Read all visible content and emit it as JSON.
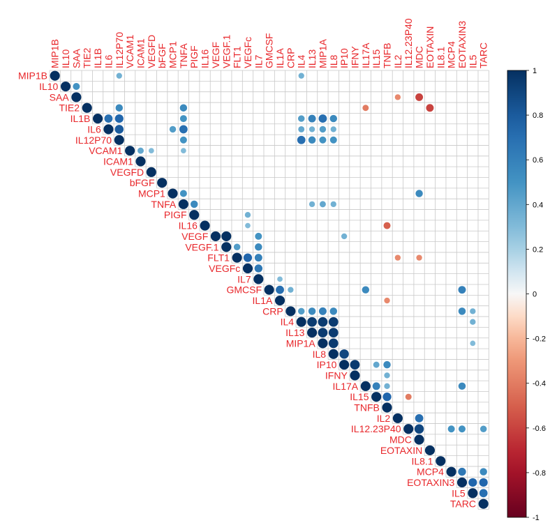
{
  "chart_data": {
    "type": "heatmap",
    "layout": "upper-triangle",
    "method": "circle",
    "variables": [
      "MIP1B",
      "IL10",
      "SAA",
      "TIE2",
      "IL1B",
      "IL6",
      "IL12P70",
      "VCAM1",
      "ICAM1",
      "VEGFD",
      "bFGF",
      "MCP1",
      "TNFA",
      "PIGF",
      "IL16",
      "VEGF",
      "VEGF.1",
      "FLT1",
      "VEGFc",
      "IL7",
      "GMCSF",
      "IL1A",
      "CRP",
      "IL4",
      "IL13",
      "MIP1A",
      "IL8",
      "IP10",
      "IFNY",
      "IL17A",
      "IL15",
      "TNFB",
      "IL2",
      "IL12.23P40",
      "MDC",
      "EOTAXIN",
      "IL8.1",
      "MCP4",
      "EOTAXIN3",
      "IL5",
      "TARC"
    ],
    "cells": [
      [
        "MIP1B",
        "IL12P70",
        0.35
      ],
      [
        "MIP1B",
        "IL4",
        0.35
      ],
      [
        "IL10",
        "SAA",
        0.5
      ],
      [
        "SAA",
        "IL2",
        -0.35
      ],
      [
        "SAA",
        "MDC",
        -0.6
      ],
      [
        "TIE2",
        "IL12P70",
        0.55
      ],
      [
        "TIE2",
        "TNFA",
        0.55
      ],
      [
        "TIE2",
        "IL17A",
        -0.4
      ],
      [
        "TIE2",
        "EOTAXIN",
        -0.6
      ],
      [
        "IL1B",
        "IL6",
        0.7
      ],
      [
        "IL1B",
        "IL12P70",
        0.75
      ],
      [
        "IL1B",
        "TNFA",
        0.5
      ],
      [
        "IL1B",
        "IL4",
        0.45
      ],
      [
        "IL1B",
        "IL13",
        0.6
      ],
      [
        "IL1B",
        "MIP1A",
        0.7
      ],
      [
        "IL1B",
        "IL8",
        0.55
      ],
      [
        "IL6",
        "IL12P70",
        0.8
      ],
      [
        "IL6",
        "MCP1",
        0.45
      ],
      [
        "IL6",
        "TNFA",
        0.7
      ],
      [
        "IL6",
        "IL4",
        0.4
      ],
      [
        "IL6",
        "IL13",
        0.35
      ],
      [
        "IL6",
        "MIP1A",
        0.45
      ],
      [
        "IL6",
        "IL8",
        0.35
      ],
      [
        "IL12P70",
        "TNFA",
        0.5
      ],
      [
        "IL12P70",
        "IL4",
        0.7
      ],
      [
        "IL12P70",
        "IL13",
        0.55
      ],
      [
        "IL12P70",
        "MIP1A",
        0.5
      ],
      [
        "IL12P70",
        "IL8",
        0.5
      ],
      [
        "VCAM1",
        "ICAM1",
        0.4
      ],
      [
        "VCAM1",
        "VEGFD",
        0.3
      ],
      [
        "VCAM1",
        "TNFA",
        0.3
      ],
      [
        "MCP1",
        "TNFA",
        0.5
      ],
      [
        "MCP1",
        "MDC",
        0.55
      ],
      [
        "TNFA",
        "PIGF",
        0.55
      ],
      [
        "TNFA",
        "IL13",
        0.35
      ],
      [
        "TNFA",
        "MIP1A",
        0.4
      ],
      [
        "TNFA",
        "IL8",
        0.35
      ],
      [
        "PIGF",
        "VEGFc",
        0.35
      ],
      [
        "IL16",
        "VEGFc",
        0.3
      ],
      [
        "IL16",
        "TNFB",
        -0.5
      ],
      [
        "VEGF",
        "VEGF.1",
        1.0
      ],
      [
        "VEGF",
        "IL7",
        0.5
      ],
      [
        "VEGF",
        "IP10",
        0.35
      ],
      [
        "VEGF.1",
        "FLT1",
        0.45
      ],
      [
        "VEGF.1",
        "IL7",
        0.55
      ],
      [
        "FLT1",
        "VEGFc",
        0.75
      ],
      [
        "FLT1",
        "IL7",
        0.6
      ],
      [
        "FLT1",
        "IL2",
        -0.35
      ],
      [
        "FLT1",
        "MDC",
        -0.35
      ],
      [
        "VEGFc",
        "IL7",
        0.65
      ],
      [
        "IL7",
        "IL1A",
        0.3
      ],
      [
        "GMCSF",
        "IL1A",
        0.7
      ],
      [
        "GMCSF",
        "CRP",
        0.35
      ],
      [
        "GMCSF",
        "IL17A",
        0.55
      ],
      [
        "GMCSF",
        "EOTAXIN3",
        0.6
      ],
      [
        "IL1A",
        "TNFB",
        -0.35
      ],
      [
        "CRP",
        "IL4",
        0.45
      ],
      [
        "CRP",
        "IL13",
        0.55
      ],
      [
        "CRP",
        "MIP1A",
        0.6
      ],
      [
        "CRP",
        "IL8",
        0.55
      ],
      [
        "CRP",
        "IL5",
        0.35
      ],
      [
        "CRP",
        "EOTAXIN3",
        0.55
      ],
      [
        "IL4",
        "IL13",
        0.95
      ],
      [
        "IL4",
        "MIP1A",
        0.95
      ],
      [
        "IL4",
        "IL8",
        0.95
      ],
      [
        "IL4",
        "IL5",
        0.35
      ],
      [
        "IL13",
        "MIP1A",
        0.95
      ],
      [
        "IL13",
        "IL8",
        0.95
      ],
      [
        "MIP1A",
        "IL8",
        0.95
      ],
      [
        "MIP1A",
        "IL5",
        0.3
      ],
      [
        "IL8",
        "IP10",
        0.9
      ],
      [
        "IP10",
        "IFNY",
        0.95
      ],
      [
        "IP10",
        "IL15",
        0.4
      ],
      [
        "IP10",
        "TNFB",
        0.55
      ],
      [
        "IFNY",
        "TNFB",
        0.35
      ],
      [
        "IL17A",
        "IL15",
        0.6
      ],
      [
        "IL17A",
        "TNFB",
        0.35
      ],
      [
        "IL17A",
        "EOTAXIN3",
        0.55
      ],
      [
        "IL15",
        "TNFB",
        0.75
      ],
      [
        "IL15",
        "IL12.23P40",
        -0.4
      ],
      [
        "IL2",
        "MDC",
        0.7
      ],
      [
        "IL12.23P40",
        "MDC",
        0.9
      ],
      [
        "IL12.23P40",
        "MCP4",
        0.5
      ],
      [
        "IL12.23P40",
        "EOTAXIN3",
        0.5
      ],
      [
        "IL12.23P40",
        "TARC",
        0.45
      ],
      [
        "MCP4",
        "EOTAXIN3",
        0.65
      ],
      [
        "MCP4",
        "TARC",
        0.55
      ],
      [
        "EOTAXIN3",
        "IL5",
        0.75
      ],
      [
        "EOTAXIN3",
        "TARC",
        0.75
      ],
      [
        "IL5",
        "TARC",
        0.7
      ]
    ],
    "color_scale": {
      "min": -1,
      "max": 1,
      "ticks": [
        "-1",
        "-0.8",
        "-0.6",
        "-0.4",
        "-0.2",
        "0",
        "0.2",
        "0.4",
        "0.6",
        "0.8",
        "1"
      ],
      "negative_color": "#67001f",
      "neutral_color": "#ffffff",
      "positive_color": "#053061"
    },
    "label_color": "#e8262a",
    "grid": true,
    "legend_placement": "right"
  }
}
